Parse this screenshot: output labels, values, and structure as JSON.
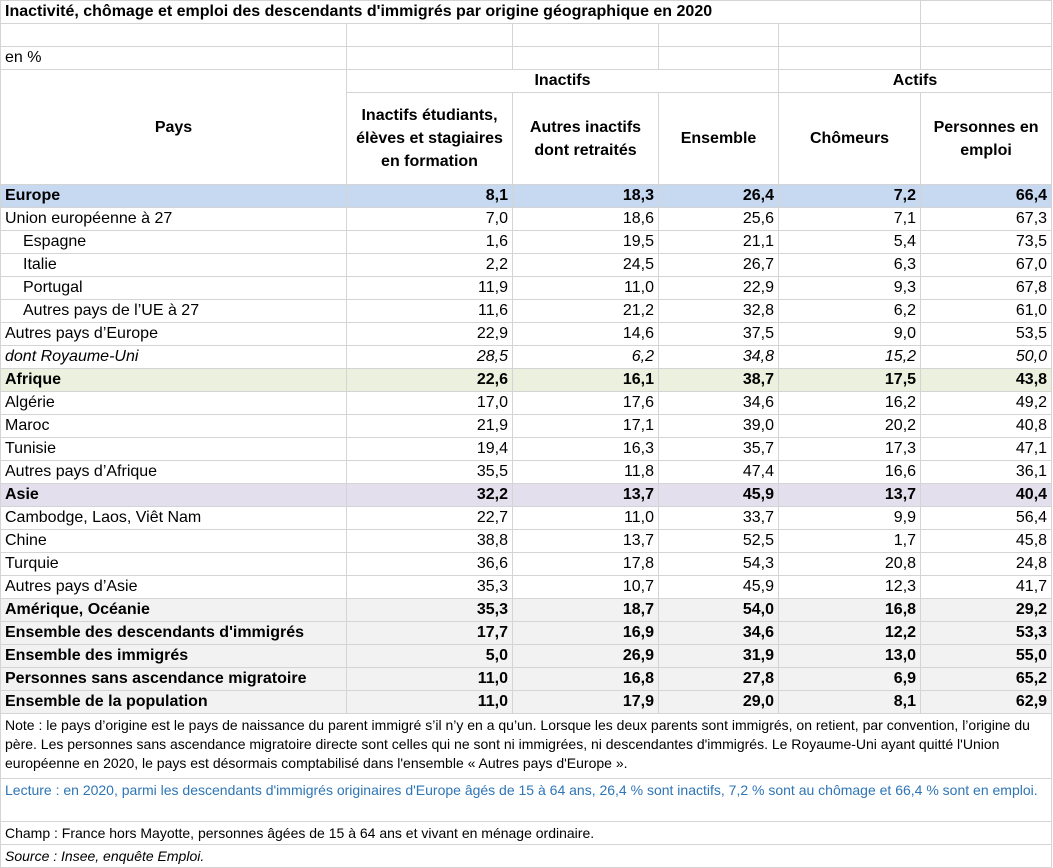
{
  "title": "Inactivité, chômage et emploi des descendants d'immigrés par origine géographique en 2020",
  "unit": "en %",
  "headers": {
    "pays": "Pays",
    "group_inactifs": "Inactifs",
    "group_actifs": "Actifs",
    "col1": "Inactifs étudiants, élèves et stagiaires en formation",
    "col2": "Autres inactifs dont retraités",
    "col3": "Ensemble",
    "col4": "Chômeurs",
    "col5": "Personnes en emploi"
  },
  "rows": [
    {
      "label": "Europe",
      "v": [
        "8,1",
        "18,3",
        "26,4",
        "7,2",
        "66,4"
      ]
    },
    {
      "label": "Union européenne à 27",
      "v": [
        "7,0",
        "18,6",
        "25,6",
        "7,1",
        "67,3"
      ]
    },
    {
      "label": "Espagne",
      "v": [
        "1,6",
        "19,5",
        "21,1",
        "5,4",
        "73,5"
      ]
    },
    {
      "label": "Italie",
      "v": [
        "2,2",
        "24,5",
        "26,7",
        "6,3",
        "67,0"
      ]
    },
    {
      "label": "Portugal",
      "v": [
        "11,9",
        "11,0",
        "22,9",
        "9,3",
        "67,8"
      ]
    },
    {
      "label": "Autres pays de l’UE à 27",
      "v": [
        "11,6",
        "21,2",
        "32,8",
        "6,2",
        "61,0"
      ]
    },
    {
      "label": "Autres pays d’Europe",
      "v": [
        "22,9",
        "14,6",
        "37,5",
        "9,0",
        "53,5"
      ]
    },
    {
      "label": "dont Royaume-Uni",
      "v": [
        "28,5",
        "6,2",
        "34,8",
        "15,2",
        "50,0"
      ]
    },
    {
      "label": "Afrique",
      "v": [
        "22,6",
        "16,1",
        "38,7",
        "17,5",
        "43,8"
      ]
    },
    {
      "label": "Algérie",
      "v": [
        "17,0",
        "17,6",
        "34,6",
        "16,2",
        "49,2"
      ]
    },
    {
      "label": "Maroc",
      "v": [
        "21,9",
        "17,1",
        "39,0",
        "20,2",
        "40,8"
      ]
    },
    {
      "label": "Tunisie",
      "v": [
        "19,4",
        "16,3",
        "35,7",
        "17,3",
        "47,1"
      ]
    },
    {
      "label": "Autres pays d’Afrique",
      "v": [
        "35,5",
        "11,8",
        "47,4",
        "16,6",
        "36,1"
      ]
    },
    {
      "label": "Asie",
      "v": [
        "32,2",
        "13,7",
        "45,9",
        "13,7",
        "40,4"
      ]
    },
    {
      "label": "Cambodge, Laos, Viêt Nam",
      "v": [
        "22,7",
        "11,0",
        "33,7",
        "9,9",
        "56,4"
      ]
    },
    {
      "label": "Chine",
      "v": [
        "38,8",
        "13,7",
        "52,5",
        "1,7",
        "45,8"
      ]
    },
    {
      "label": "Turquie",
      "v": [
        "36,6",
        "17,8",
        "54,3",
        "20,8",
        "24,8"
      ]
    },
    {
      "label": "Autres pays d’Asie",
      "v": [
        "35,3",
        "10,7",
        "45,9",
        "12,3",
        "41,7"
      ]
    },
    {
      "label": "Amérique, Océanie",
      "v": [
        "35,3",
        "18,7",
        "54,0",
        "16,8",
        "29,2"
      ]
    },
    {
      "label": "Ensemble des descendants d'immigrés",
      "v": [
        "17,7",
        "16,9",
        "34,6",
        "12,2",
        "53,3"
      ]
    },
    {
      "label": "Ensemble des immigrés",
      "v": [
        "5,0",
        "26,9",
        "31,9",
        "13,0",
        "55,0"
      ]
    },
    {
      "label": "Personnes sans ascendance migratoire",
      "v": [
        "11,0",
        "16,8",
        "27,8",
        "6,9",
        "65,2"
      ]
    },
    {
      "label": "Ensemble de la population",
      "v": [
        "11,0",
        "17,9",
        "29,0",
        "8,1",
        "62,9"
      ]
    }
  ],
  "notes": {
    "note": "Note : le pays d’origine est le pays de naissance du parent immigré s’il n’y en a qu’un. Lorsque les deux parents sont immigrés, on retient, par convention, l’origine du père. Les personnes sans ascendance migratoire directe sont celles qui ne sont ni immigrées, ni descendantes d'immigrés. Le Royaume-Uni ayant quitté l'Union européenne en 2020, le pays est désormais comptabilisé dans l'ensemble « Autres pays d'Europe ».",
    "lecture": "Lecture : en 2020, parmi les descendants d'immigrés originaires d'Europe âgés de 15 à 64 ans, 26,4 % sont inactifs, 7,2 % sont au chômage et 66,4 % sont en emploi.",
    "champ": "Champ : France hors Mayotte, personnes âgées de 15 à 64 ans et vivant en ménage ordinaire.",
    "source": "Source : Insee, enquête Emploi."
  },
  "colors": {
    "europe_fill": "#c6d9f1",
    "afrique_fill": "#ebf1de",
    "asie_fill": "#e4dfec",
    "totals_fill": "#f2f2f2",
    "lecture_text": "#2e75b6",
    "gridline": "#d4d4d4"
  }
}
